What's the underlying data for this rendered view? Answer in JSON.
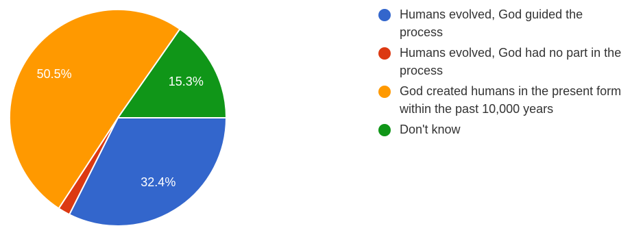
{
  "chart_data": {
    "type": "pie",
    "title": "",
    "legend_position": "right",
    "slices": [
      {
        "label": "Humans evolved, God guided the process",
        "value": 32.4,
        "display": "32.4%",
        "color": "#3366cc",
        "show_label": true
      },
      {
        "label": "Humans evolved, God had no part in the process",
        "value": 1.8,
        "display": "",
        "color": "#dc3912",
        "show_label": false
      },
      {
        "label": "God created humans in the present form within the past 10,000 years",
        "value": 50.5,
        "display": "50.5%",
        "color": "#ff9900",
        "show_label": true
      },
      {
        "label": "Don't know",
        "value": 15.3,
        "display": "15.3%",
        "color": "#109618",
        "show_label": true
      }
    ]
  }
}
